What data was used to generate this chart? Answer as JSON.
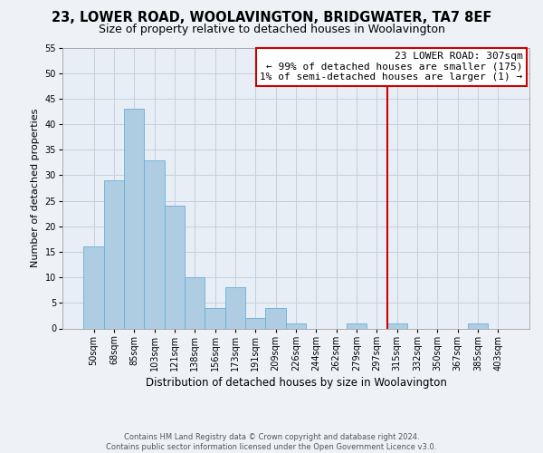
{
  "title": "23, LOWER ROAD, WOOLAVINGTON, BRIDGWATER, TA7 8EF",
  "subtitle": "Size of property relative to detached houses in Woolavington",
  "xlabel": "Distribution of detached houses by size in Woolavington",
  "ylabel": "Number of detached properties",
  "footer_lines": [
    "Contains HM Land Registry data © Crown copyright and database right 2024.",
    "Contains public sector information licensed under the Open Government Licence v3.0."
  ],
  "bin_labels": [
    "50sqm",
    "68sqm",
    "85sqm",
    "103sqm",
    "121sqm",
    "138sqm",
    "156sqm",
    "173sqm",
    "191sqm",
    "209sqm",
    "226sqm",
    "244sqm",
    "262sqm",
    "279sqm",
    "297sqm",
    "315sqm",
    "332sqm",
    "350sqm",
    "367sqm",
    "385sqm",
    "403sqm"
  ],
  "bar_values": [
    16,
    29,
    43,
    33,
    24,
    10,
    4,
    8,
    2,
    4,
    1,
    0,
    0,
    1,
    0,
    1,
    0,
    0,
    0,
    1,
    0
  ],
  "bar_color": "#aecde3",
  "bar_edge_color": "#6aaed6",
  "bar_width": 1.0,
  "vline_x": 14.5,
  "vline_color": "#cc0000",
  "annotation_title": "23 LOWER ROAD: 307sqm",
  "annotation_line1": "← 99% of detached houses are smaller (175)",
  "annotation_line2": "1% of semi-detached houses are larger (1) →",
  "ylim": [
    0,
    55
  ],
  "yticks": [
    0,
    5,
    10,
    15,
    20,
    25,
    30,
    35,
    40,
    45,
    50,
    55
  ],
  "background_color": "#eef2f7",
  "plot_bg_color": "#e8eef5",
  "grid_color": "#c5d0de",
  "title_fontsize": 10.5,
  "subtitle_fontsize": 9,
  "xlabel_fontsize": 8.5,
  "ylabel_fontsize": 8,
  "tick_fontsize": 7,
  "annotation_fontsize": 8,
  "footer_fontsize": 6
}
